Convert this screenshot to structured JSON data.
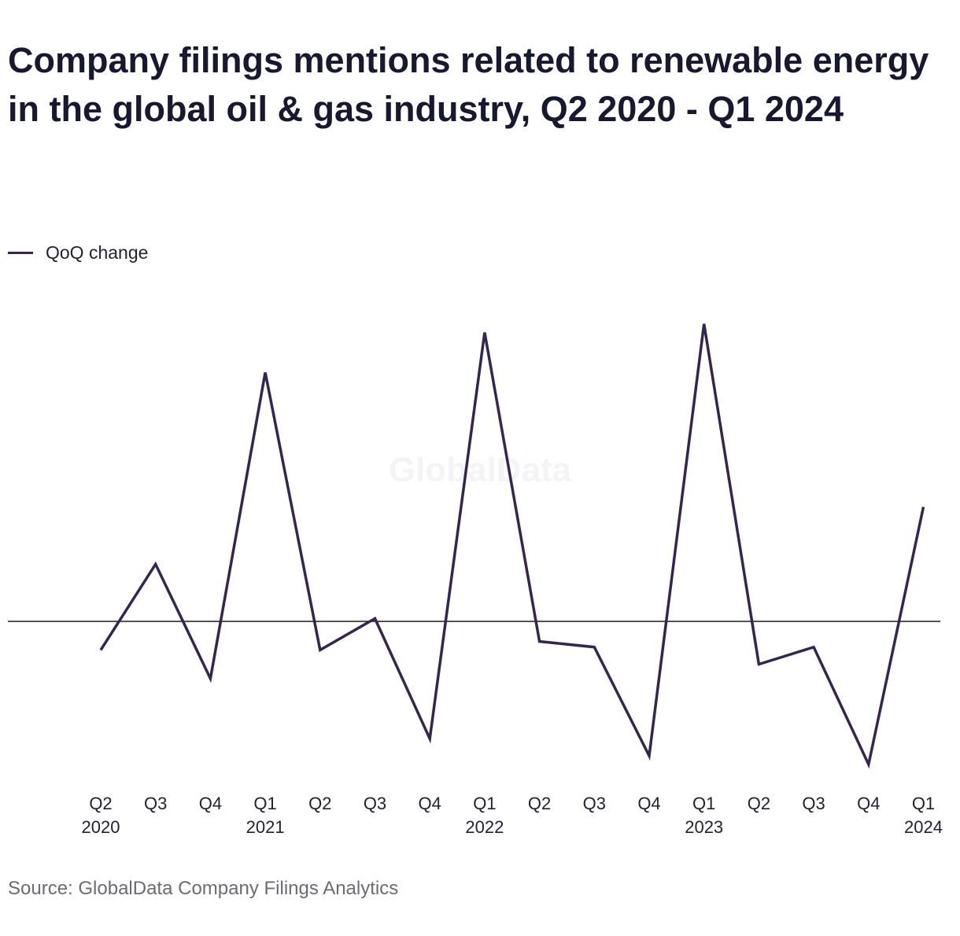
{
  "chart_data": {
    "type": "line",
    "title": "Company filings mentions related to renewable energy in the global oil & gas industry, Q2 2020 - Q1 2024",
    "categories": [
      [
        "Q2",
        "2020"
      ],
      [
        "Q3",
        ""
      ],
      [
        "Q4",
        ""
      ],
      [
        "Q1",
        "2021"
      ],
      [
        "Q2",
        ""
      ],
      [
        "Q3",
        ""
      ],
      [
        "Q4",
        ""
      ],
      [
        "Q1",
        "2022"
      ],
      [
        "Q2",
        ""
      ],
      [
        "Q3",
        ""
      ],
      [
        "Q4",
        ""
      ],
      [
        "Q1",
        "2023"
      ],
      [
        "Q2",
        ""
      ],
      [
        "Q3",
        ""
      ],
      [
        "Q4",
        ""
      ],
      [
        "Q1",
        "2024"
      ]
    ],
    "series": [
      {
        "name": "QoQ change",
        "color": "#35264f",
        "values": [
          -10,
          20,
          -20,
          87,
          -10,
          1,
          -41,
          101,
          -7,
          -9,
          -47,
          104,
          -15,
          -9,
          -50,
          40
        ]
      }
    ],
    "ylim": [
      -55,
      110
    ],
    "zero_line": true,
    "y_axis_labels_shown": false,
    "grid": false,
    "legend_position": "top-left",
    "watermark": "GlobalData",
    "source": "Source: GlobalData Company Filings Analytics"
  }
}
